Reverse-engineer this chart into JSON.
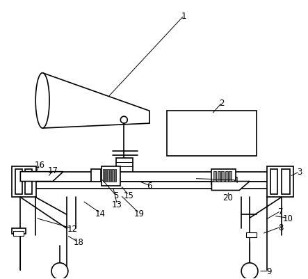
{
  "background_color": "#ffffff",
  "line_color": "#000000",
  "figure_width": 4.43,
  "figure_height": 4.02,
  "dpi": 100
}
